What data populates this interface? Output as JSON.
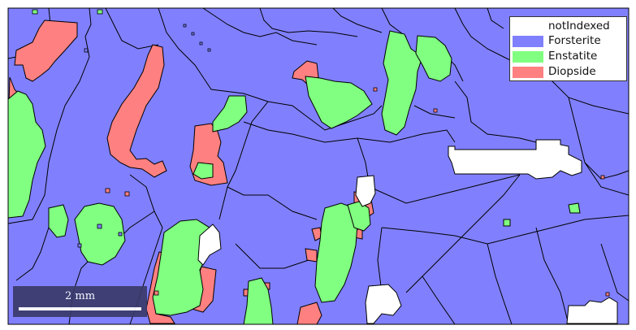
{
  "legend": {
    "items": [
      {
        "label": "notIndexed",
        "color": "#ffffff"
      },
      {
        "label": "Forsterite",
        "color": "#8080ff"
      },
      {
        "label": "Enstatite",
        "color": "#80ff80"
      },
      {
        "label": "Diopside",
        "color": "#ff8080"
      }
    ]
  },
  "scalebar": {
    "label": "2 mm"
  },
  "colors": {
    "background_phase": "#8080ff",
    "grain_boundary": "#000000"
  }
}
